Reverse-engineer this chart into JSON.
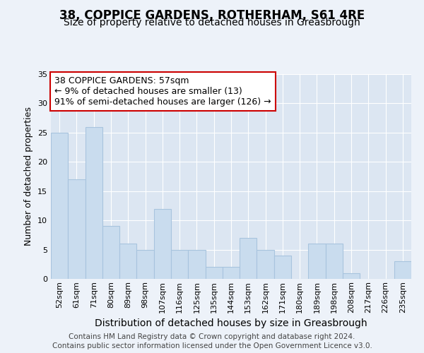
{
  "title": "38, COPPICE GARDENS, ROTHERHAM, S61 4RE",
  "subtitle": "Size of property relative to detached houses in Greasbrough",
  "xlabel": "Distribution of detached houses by size in Greasbrough",
  "ylabel": "Number of detached properties",
  "categories": [
    "52sqm",
    "61sqm",
    "71sqm",
    "80sqm",
    "89sqm",
    "98sqm",
    "107sqm",
    "116sqm",
    "125sqm",
    "135sqm",
    "144sqm",
    "153sqm",
    "162sqm",
    "171sqm",
    "180sqm",
    "189sqm",
    "198sqm",
    "208sqm",
    "217sqm",
    "226sqm",
    "235sqm"
  ],
  "values": [
    25,
    17,
    26,
    9,
    6,
    5,
    12,
    5,
    5,
    2,
    2,
    7,
    5,
    4,
    0,
    6,
    6,
    1,
    0,
    0,
    3
  ],
  "bar_color": "#c9dcee",
  "bar_edge_color": "#a8c4de",
  "annotation_line1": "38 COPPICE GARDENS: 57sqm",
  "annotation_line2": "← 9% of detached houses are smaller (13)",
  "annotation_line3": "91% of semi-detached houses are larger (126) →",
  "annotation_box_edge_color": "#cc0000",
  "ylim": [
    0,
    35
  ],
  "yticks": [
    0,
    5,
    10,
    15,
    20,
    25,
    30,
    35
  ],
  "background_color": "#edf2f9",
  "plot_bg_color": "#dce6f2",
  "grid_color": "#ffffff",
  "footnote1": "Contains HM Land Registry data © Crown copyright and database right 2024.",
  "footnote2": "Contains public sector information licensed under the Open Government Licence v3.0.",
  "title_fontsize": 12,
  "subtitle_fontsize": 10,
  "tick_fontsize": 8,
  "ylabel_fontsize": 9,
  "xlabel_fontsize": 10,
  "annotation_fontsize": 9,
  "footnote_fontsize": 7.5
}
